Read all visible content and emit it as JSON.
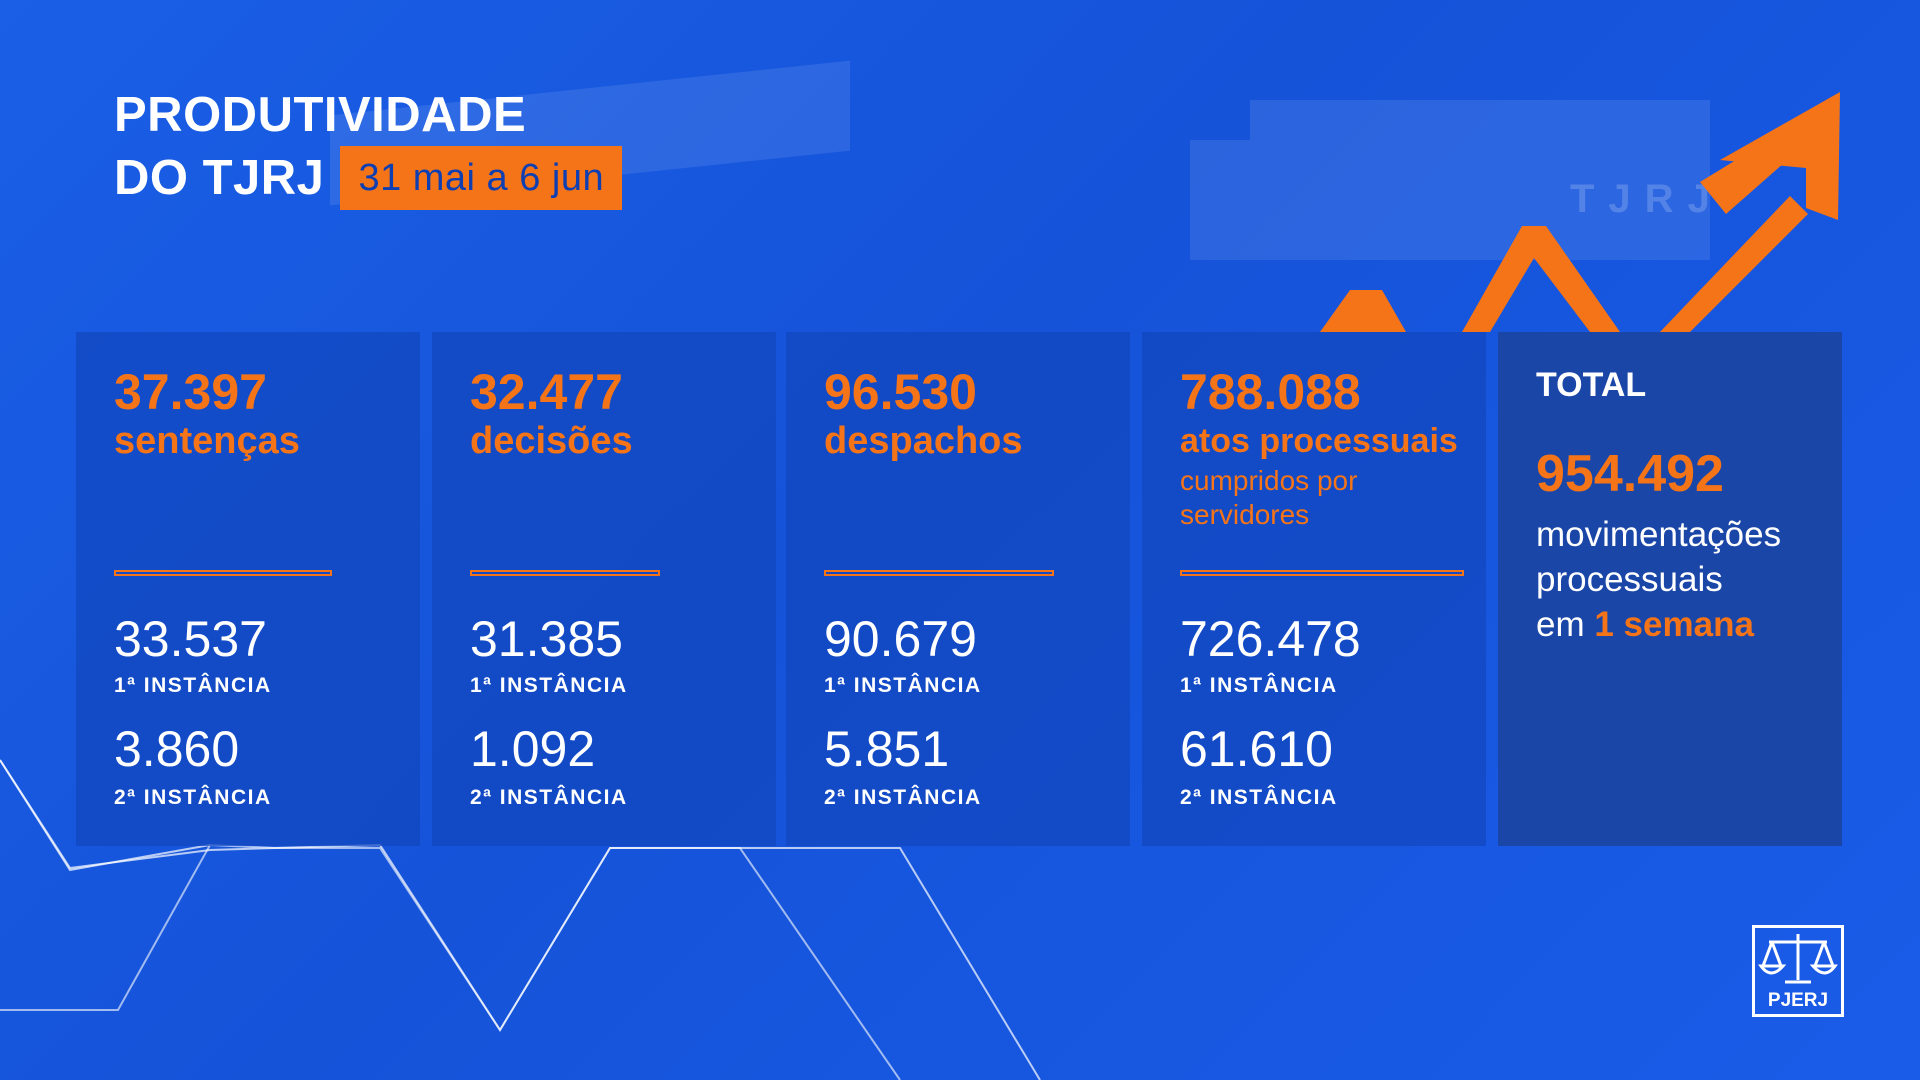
{
  "header": {
    "title_line1": "PRODUTIVIDADE",
    "title_line2": "DO TJRJ",
    "date_range": "31 mai a 6 jun"
  },
  "background": {
    "building_sign": "TJRJ"
  },
  "stats": [
    {
      "total": "37.397",
      "label": "sentenças",
      "sublabel": "",
      "first_value": "33.537",
      "first_label": "1ª INSTÂNCIA",
      "second_value": "3.860",
      "second_label": "2ª INSTÂNCIA"
    },
    {
      "total": "32.477",
      "label": "decisões",
      "sublabel": "",
      "first_value": "31.385",
      "first_label": "1ª INSTÂNCIA",
      "second_value": "1.092",
      "second_label": "2ª INSTÂNCIA"
    },
    {
      "total": "96.530",
      "label": "despachos",
      "sublabel": "",
      "first_value": "90.679",
      "first_label": "1ª INSTÂNCIA",
      "second_value": "5.851",
      "second_label": "2ª INSTÂNCIA"
    },
    {
      "total": "788.088",
      "label": "atos processuais",
      "sublabel": "cumpridos por servidores",
      "first_value": "726.478",
      "first_label": "1ª INSTÂNCIA",
      "second_value": "61.610",
      "second_label": "2ª INSTÂNCIA"
    }
  ],
  "total": {
    "heading": "TOTAL",
    "value": "954.492",
    "line1": "movimentações",
    "line2": "processuais",
    "line3_prefix": "em",
    "line3_accent": "1 semana"
  },
  "logo": {
    "text": "PJERJ",
    "icon": "scales-of-justice-icon"
  },
  "colors": {
    "background": "#1a5fe6",
    "accent": "#f57418",
    "panel": "#1246be",
    "total_panel": "#1a46a8"
  }
}
